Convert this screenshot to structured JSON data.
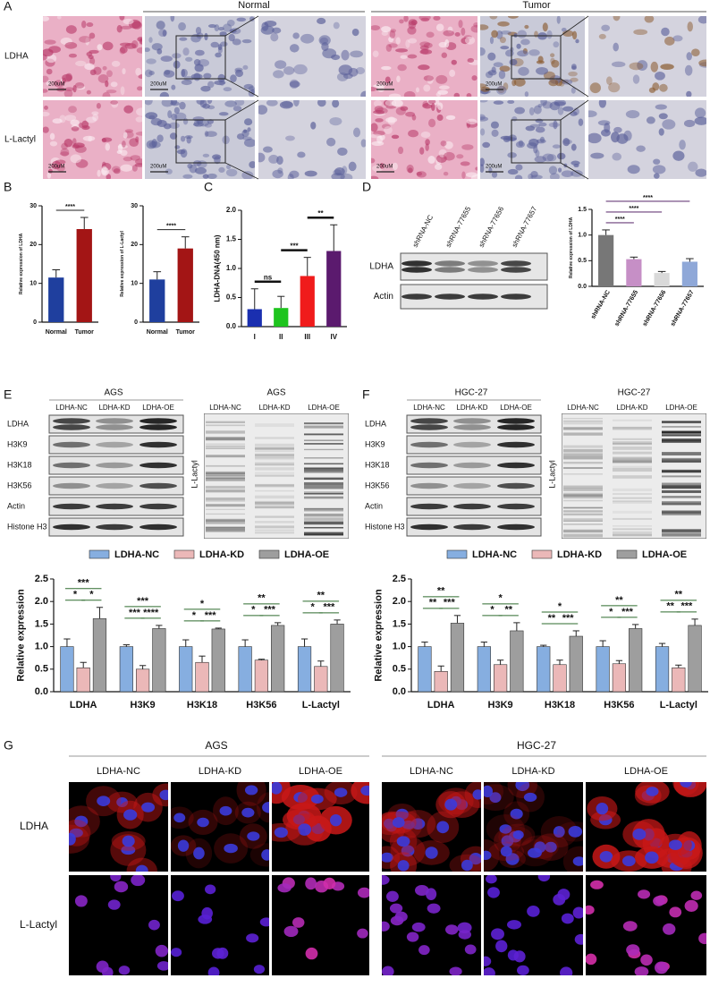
{
  "panel_labels": [
    "A",
    "B",
    "C",
    "D",
    "E",
    "F",
    "G"
  ],
  "panel_a": {
    "groups": [
      "Normal",
      "Tumor"
    ],
    "rows": [
      "LDHA",
      "L-Lactyl"
    ],
    "scale_label": "200uM"
  },
  "panel_d_blot": {
    "lanes": [
      "shRNA-NC",
      "shRNA-77655",
      "shRNA-77656",
      "shRNA-77657"
    ],
    "rows": [
      "LDHA",
      "Actin"
    ]
  },
  "panel_e_blot": {
    "cell_line": "AGS",
    "title_color": "#2e8b3a",
    "lanes": [
      "LDHA-NC",
      "LDHA-KD",
      "LDHA-OE"
    ],
    "rows": [
      "LDHA",
      "H3K9",
      "H3K18",
      "H3K56",
      "Actin",
      "Histone H3"
    ],
    "lactyl_label": "L-Lactyl"
  },
  "panel_f_blot": {
    "cell_line": "HGC-27",
    "title_color": "#1e7fd6",
    "lanes": [
      "LDHA-NC",
      "LDHA-KD",
      "LDHA-OE"
    ],
    "rows": [
      "LDHA",
      "H3K9",
      "H3K18",
      "H3K56",
      "Actin",
      "Histone H3"
    ],
    "lactyl_label": "L-Lactyl"
  },
  "panel_g": {
    "cell_lines": [
      "AGS",
      "HGC-27"
    ],
    "cell_line_colors": [
      "#2e8b3a",
      "#1e7fd6"
    ],
    "columns": [
      "LDHA-NC",
      "LDHA-KD",
      "LDHA-OE"
    ],
    "rows": [
      "LDHA",
      "L-Lactyl"
    ]
  },
  "chart_data": [
    {
      "type": "bar",
      "ylabel": "Relative expression of LDHA",
      "categories": [
        "Normal",
        "Tumor"
      ],
      "values": [
        11.5,
        24
      ],
      "errors": [
        2,
        3
      ],
      "colors": [
        "#1f3f9e",
        "#a31515"
      ],
      "ylim": [
        0,
        30
      ],
      "yticks": [
        0,
        10,
        20,
        30
      ],
      "annotations": [
        "****"
      ]
    },
    {
      "type": "bar",
      "ylabel": "Relative expression of L-Lactyl",
      "categories": [
        "Normal",
        "Tumor"
      ],
      "values": [
        11,
        19
      ],
      "errors": [
        2,
        3
      ],
      "colors": [
        "#1f3f9e",
        "#a31515"
      ],
      "ylim": [
        0,
        30
      ],
      "yticks": [
        0,
        10,
        20,
        30
      ],
      "annotations": [
        "****"
      ]
    },
    {
      "type": "bar",
      "ylabel": "LDHA-DNA(450 nm)",
      "categories": [
        "I",
        "II",
        "III",
        "IV"
      ],
      "values": [
        0.3,
        0.32,
        0.87,
        1.3
      ],
      "errors": [
        0.35,
        0.2,
        0.32,
        0.45
      ],
      "colors": [
        "#1a2fb0",
        "#1ec41e",
        "#f01b1b",
        "#5b1a6e"
      ],
      "ylim": [
        0,
        2
      ],
      "yticks": [
        {
          "value": 0,
          "label": "0.0"
        },
        0.5,
        {
          "value": 1,
          "label": "1.0"
        },
        1.5,
        {
          "value": 2,
          "label": "2.0"
        }
      ],
      "annotations": [
        "ns",
        "***",
        "**"
      ]
    },
    {
      "type": "bar",
      "ylabel": "Relative expression of LDHA",
      "categories": [
        "shRNA-NC",
        "shRNA-77655",
        "shRNA-77656",
        "shRNA-77657"
      ],
      "values": [
        1.0,
        0.53,
        0.26,
        0.48
      ],
      "errors": [
        0.1,
        0.04,
        0.03,
        0.06
      ],
      "colors": [
        "#777777",
        "#c68fc6",
        "#d9d9d9",
        "#8fa8d8"
      ],
      "ylim": [
        0,
        1.5
      ],
      "yticks": [
        {
          "value": 0,
          "label": "0.0"
        },
        0.5,
        {
          "value": 1,
          "label": "1.0"
        },
        1.5
      ],
      "annotations": [
        "****",
        "****",
        "****"
      ]
    },
    {
      "type": "bar",
      "ylabel": "Relative expression",
      "legend": "top",
      "categories": [
        "LDHA",
        "H3K9",
        "H3K18",
        "H3K56",
        "L-Lactyl"
      ],
      "series": [
        {
          "name": "LDHA-NC",
          "color": "#86aee0",
          "values": [
            1,
            1,
            1,
            1,
            1
          ],
          "errors": [
            0.17,
            0.04,
            0.15,
            0.15,
            0.17
          ]
        },
        {
          "name": "LDHA-KD",
          "color": "#ebb8b8",
          "values": [
            0.53,
            0.5,
            0.65,
            0.7,
            0.56
          ],
          "errors": [
            0.12,
            0.08,
            0.14,
            0.02,
            0.12
          ]
        },
        {
          "name": "LDHA-OE",
          "color": "#9e9e9e",
          "values": [
            1.62,
            1.4,
            1.39,
            1.47,
            1.5
          ],
          "errors": [
            0.25,
            0.07,
            0.02,
            0.06,
            0.09
          ]
        }
      ],
      "ylim": [
        0,
        2.5
      ],
      "yticks": [
        {
          "value": 0,
          "label": "0.0"
        },
        0.5,
        {
          "value": 1,
          "label": "1.0"
        },
        1.5,
        {
          "value": 2,
          "label": "2.0"
        },
        2.5
      ],
      "annotations": [
        [
          "*",
          "*",
          "***"
        ],
        [
          "***",
          "****",
          "***"
        ],
        [
          "*",
          "***",
          "*"
        ],
        [
          "*",
          "***",
          "**"
        ],
        [
          "*",
          "***",
          "**"
        ]
      ]
    },
    {
      "type": "bar",
      "ylabel": "Relative expression",
      "legend": "top",
      "categories": [
        "LDHA",
        "H3K9",
        "H3K18",
        "H3K56",
        "L-Lactyl"
      ],
      "series": [
        {
          "name": "LDHA-NC",
          "color": "#86aee0",
          "values": [
            1,
            1,
            1,
            1,
            1
          ],
          "errors": [
            0.1,
            0.1,
            0.03,
            0.13,
            0.07
          ]
        },
        {
          "name": "LDHA-KD",
          "color": "#ebb8b8",
          "values": [
            0.45,
            0.6,
            0.6,
            0.62,
            0.53
          ],
          "errors": [
            0.12,
            0.1,
            0.1,
            0.07,
            0.06
          ]
        },
        {
          "name": "LDHA-OE",
          "color": "#9e9e9e",
          "values": [
            1.52,
            1.35,
            1.23,
            1.4,
            1.47
          ],
          "errors": [
            0.17,
            0.18,
            0.12,
            0.09,
            0.14
          ]
        }
      ],
      "ylim": [
        0,
        2.5
      ],
      "yticks": [
        {
          "value": 0,
          "label": "0.0"
        },
        0.5,
        {
          "value": 1,
          "label": "1.0"
        },
        1.5,
        {
          "value": 2,
          "label": "2.0"
        },
        2.5
      ],
      "annotations": [
        [
          "**",
          "***",
          "**"
        ],
        [
          "*",
          "**",
          "*"
        ],
        [
          "**",
          "***",
          "*"
        ],
        [
          "*",
          "***",
          "**"
        ],
        [
          "**",
          "***",
          "**"
        ]
      ]
    }
  ]
}
